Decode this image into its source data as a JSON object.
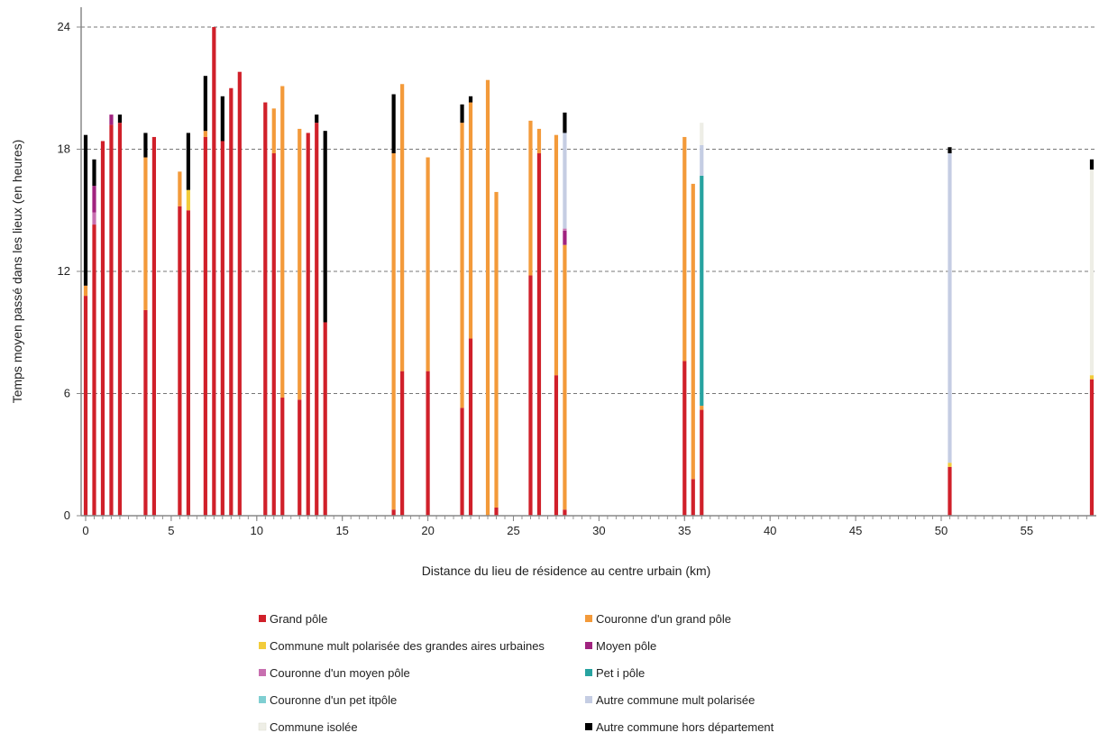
{
  "chart_data": {
    "type": "bar",
    "stacked": true,
    "xlabel": "Distance du lieu de résidence au centre urbain (km)",
    "ylabel": "Temps moyen passé dans les lieux (en heures)",
    "xlim": [
      0,
      58.8
    ],
    "ylim": [
      0,
      24
    ],
    "x_ticks": [
      "0",
      "5",
      "10",
      "15",
      "20",
      "25",
      "30",
      "35",
      "40",
      "45",
      "50",
      "55"
    ],
    "y_ticks": [
      "0",
      "6",
      "12",
      "18",
      "24"
    ],
    "grid": "horizontal dashed",
    "legend_position": "bottom",
    "series": [
      {
        "name": "Grand pôle",
        "color": "#d0202a"
      },
      {
        "name": "Couronne d'un grand pôle",
        "color": "#f39a3a"
      },
      {
        "name": "Commune mult polarisée des grandes aires urbaines",
        "color": "#f2cc3b"
      },
      {
        "name": "Moyen pôle",
        "color": "#a0237f"
      },
      {
        "name": "Couronne d'un moyen pôle",
        "color": "#c86fb0"
      },
      {
        "name": "Pet i pôle",
        "color": "#27a3a0"
      },
      {
        "name": "Couronne d'un pet itpôle",
        "color": "#7fcfd2"
      },
      {
        "name": "Autre commune mult polarisée",
        "color": "#c5cde3"
      },
      {
        "name": "Commune isolée",
        "color": "#eeeee6"
      },
      {
        "name": "Autre commune hors département",
        "color": "#000000"
      }
    ],
    "bars": [
      {
        "x": 0.0,
        "segments": [
          [
            "Grand pôle",
            10.8
          ],
          [
            "Couronne d'un grand pôle",
            0.5
          ],
          [
            "Autre commune hors département",
            7.4
          ]
        ]
      },
      {
        "x": 0.5,
        "segments": [
          [
            "Grand pôle",
            14.3
          ],
          [
            "Couronne d'un moyen pôle",
            0.6
          ],
          [
            "Moyen pôle",
            1.3
          ],
          [
            "Autre commune hors département",
            1.3
          ]
        ]
      },
      {
        "x": 1.0,
        "segments": [
          [
            "Grand pôle",
            18.4
          ]
        ]
      },
      {
        "x": 1.5,
        "segments": [
          [
            "Grand pôle",
            19.2
          ],
          [
            "Moyen pôle",
            0.5
          ]
        ]
      },
      {
        "x": 2.0,
        "segments": [
          [
            "Grand pôle",
            19.3
          ],
          [
            "Autre commune hors département",
            0.4
          ]
        ]
      },
      {
        "x": 3.5,
        "segments": [
          [
            "Grand pôle",
            10.1
          ],
          [
            "Couronne d'un grand pôle",
            7.5
          ],
          [
            "Autre commune hors département",
            1.2
          ]
        ]
      },
      {
        "x": 4.0,
        "segments": [
          [
            "Grand pôle",
            18.6
          ]
        ]
      },
      {
        "x": 5.5,
        "segments": [
          [
            "Grand pôle",
            15.2
          ],
          [
            "Couronne d'un grand pôle",
            1.7
          ]
        ]
      },
      {
        "x": 6.0,
        "segments": [
          [
            "Grand pôle",
            15.0
          ],
          [
            "Commune mult polarisée des grandes aires urbaines",
            1.0
          ],
          [
            "Autre commune hors département",
            2.8
          ]
        ]
      },
      {
        "x": 7.0,
        "segments": [
          [
            "Grand pôle",
            18.6
          ],
          [
            "Couronne d'un grand pôle",
            0.3
          ],
          [
            "Autre commune hors département",
            2.7
          ]
        ]
      },
      {
        "x": 7.5,
        "segments": [
          [
            "Grand pôle",
            24.0
          ]
        ]
      },
      {
        "x": 8.0,
        "segments": [
          [
            "Grand pôle",
            18.4
          ],
          [
            "Autre commune hors département",
            2.2
          ]
        ]
      },
      {
        "x": 8.5,
        "segments": [
          [
            "Grand pôle",
            21.0
          ]
        ]
      },
      {
        "x": 9.0,
        "segments": [
          [
            "Grand pôle",
            21.8
          ]
        ]
      },
      {
        "x": 10.5,
        "segments": [
          [
            "Grand pôle",
            20.3
          ]
        ]
      },
      {
        "x": 11.0,
        "segments": [
          [
            "Grand pôle",
            17.8
          ],
          [
            "Couronne d'un grand pôle",
            2.2
          ]
        ]
      },
      {
        "x": 11.5,
        "segments": [
          [
            "Grand pôle",
            5.8
          ],
          [
            "Couronne d'un grand pôle",
            15.3
          ]
        ]
      },
      {
        "x": 12.5,
        "segments": [
          [
            "Grand pôle",
            5.7
          ],
          [
            "Couronne d'un grand pôle",
            13.3
          ]
        ]
      },
      {
        "x": 13.0,
        "segments": [
          [
            "Grand pôle",
            18.8
          ]
        ]
      },
      {
        "x": 13.5,
        "segments": [
          [
            "Grand pôle",
            19.3
          ],
          [
            "Autre commune hors département",
            0.4
          ]
        ]
      },
      {
        "x": 14.0,
        "segments": [
          [
            "Grand pôle",
            9.5
          ],
          [
            "Autre commune hors département",
            9.4
          ]
        ]
      },
      {
        "x": 18.0,
        "segments": [
          [
            "Grand pôle",
            0.3
          ],
          [
            "Couronne d'un grand pôle",
            17.5
          ],
          [
            "Autre commune hors département",
            2.9
          ]
        ]
      },
      {
        "x": 18.5,
        "segments": [
          [
            "Grand pôle",
            7.1
          ],
          [
            "Couronne d'un grand pôle",
            14.1
          ]
        ]
      },
      {
        "x": 20.0,
        "segments": [
          [
            "Grand pôle",
            7.1
          ],
          [
            "Couronne d'un grand pôle",
            10.5
          ]
        ]
      },
      {
        "x": 22.0,
        "segments": [
          [
            "Grand pôle",
            5.3
          ],
          [
            "Couronne d'un grand pôle",
            14.0
          ],
          [
            "Autre commune hors département",
            0.9
          ]
        ]
      },
      {
        "x": 22.5,
        "segments": [
          [
            "Grand pôle",
            8.7
          ],
          [
            "Couronne d'un grand pôle",
            11.6
          ],
          [
            "Autre commune hors département",
            0.3
          ]
        ]
      },
      {
        "x": 23.5,
        "segments": [
          [
            "Couronne d'un grand pôle",
            21.4
          ]
        ]
      },
      {
        "x": 24.0,
        "segments": [
          [
            "Grand pôle",
            0.4
          ],
          [
            "Couronne d'un grand pôle",
            15.5
          ]
        ]
      },
      {
        "x": 26.0,
        "segments": [
          [
            "Grand pôle",
            11.8
          ],
          [
            "Couronne d'un grand pôle",
            7.6
          ]
        ]
      },
      {
        "x": 26.5,
        "segments": [
          [
            "Grand pôle",
            17.8
          ],
          [
            "Couronne d'un grand pôle",
            1.2
          ]
        ]
      },
      {
        "x": 27.5,
        "segments": [
          [
            "Grand pôle",
            6.9
          ],
          [
            "Couronne d'un grand pôle",
            11.8
          ]
        ]
      },
      {
        "x": 28.0,
        "segments": [
          [
            "Grand pôle",
            0.3
          ],
          [
            "Couronne d'un grand pôle",
            13.0
          ],
          [
            "Moyen pôle",
            0.7
          ],
          [
            "Couronne d'un moyen pôle",
            0.1
          ],
          [
            "Autre commune mult polarisée",
            4.7
          ],
          [
            "Autre commune hors département",
            1.0
          ]
        ]
      },
      {
        "x": 35.0,
        "segments": [
          [
            "Grand pôle",
            7.6
          ],
          [
            "Couronne d'un grand pôle",
            11.0
          ]
        ]
      },
      {
        "x": 35.5,
        "segments": [
          [
            "Grand pôle",
            1.8
          ],
          [
            "Couronne d'un grand pôle",
            14.5
          ]
        ]
      },
      {
        "x": 36.0,
        "segments": [
          [
            "Grand pôle",
            5.2
          ],
          [
            "Couronne d'un grand pôle",
            0.2
          ],
          [
            "Pet i pôle",
            11.3
          ],
          [
            "Autre commune mult polarisée",
            1.5
          ],
          [
            "Commune isolée",
            1.1
          ]
        ]
      },
      {
        "x": 50.5,
        "segments": [
          [
            "Grand pôle",
            2.4
          ],
          [
            "Commune mult polarisée des grandes aires urbaines",
            0.2
          ],
          [
            "Autre commune mult polarisée",
            15.2
          ],
          [
            "Autre commune hors département",
            0.3
          ]
        ]
      },
      {
        "x": 58.8,
        "segments": [
          [
            "Grand pôle",
            6.7
          ],
          [
            "Commune mult polarisée des grandes aires urbaines",
            0.2
          ],
          [
            "Commune isolée",
            10.1
          ],
          [
            "Autre commune hors département",
            0.5
          ]
        ]
      }
    ]
  }
}
